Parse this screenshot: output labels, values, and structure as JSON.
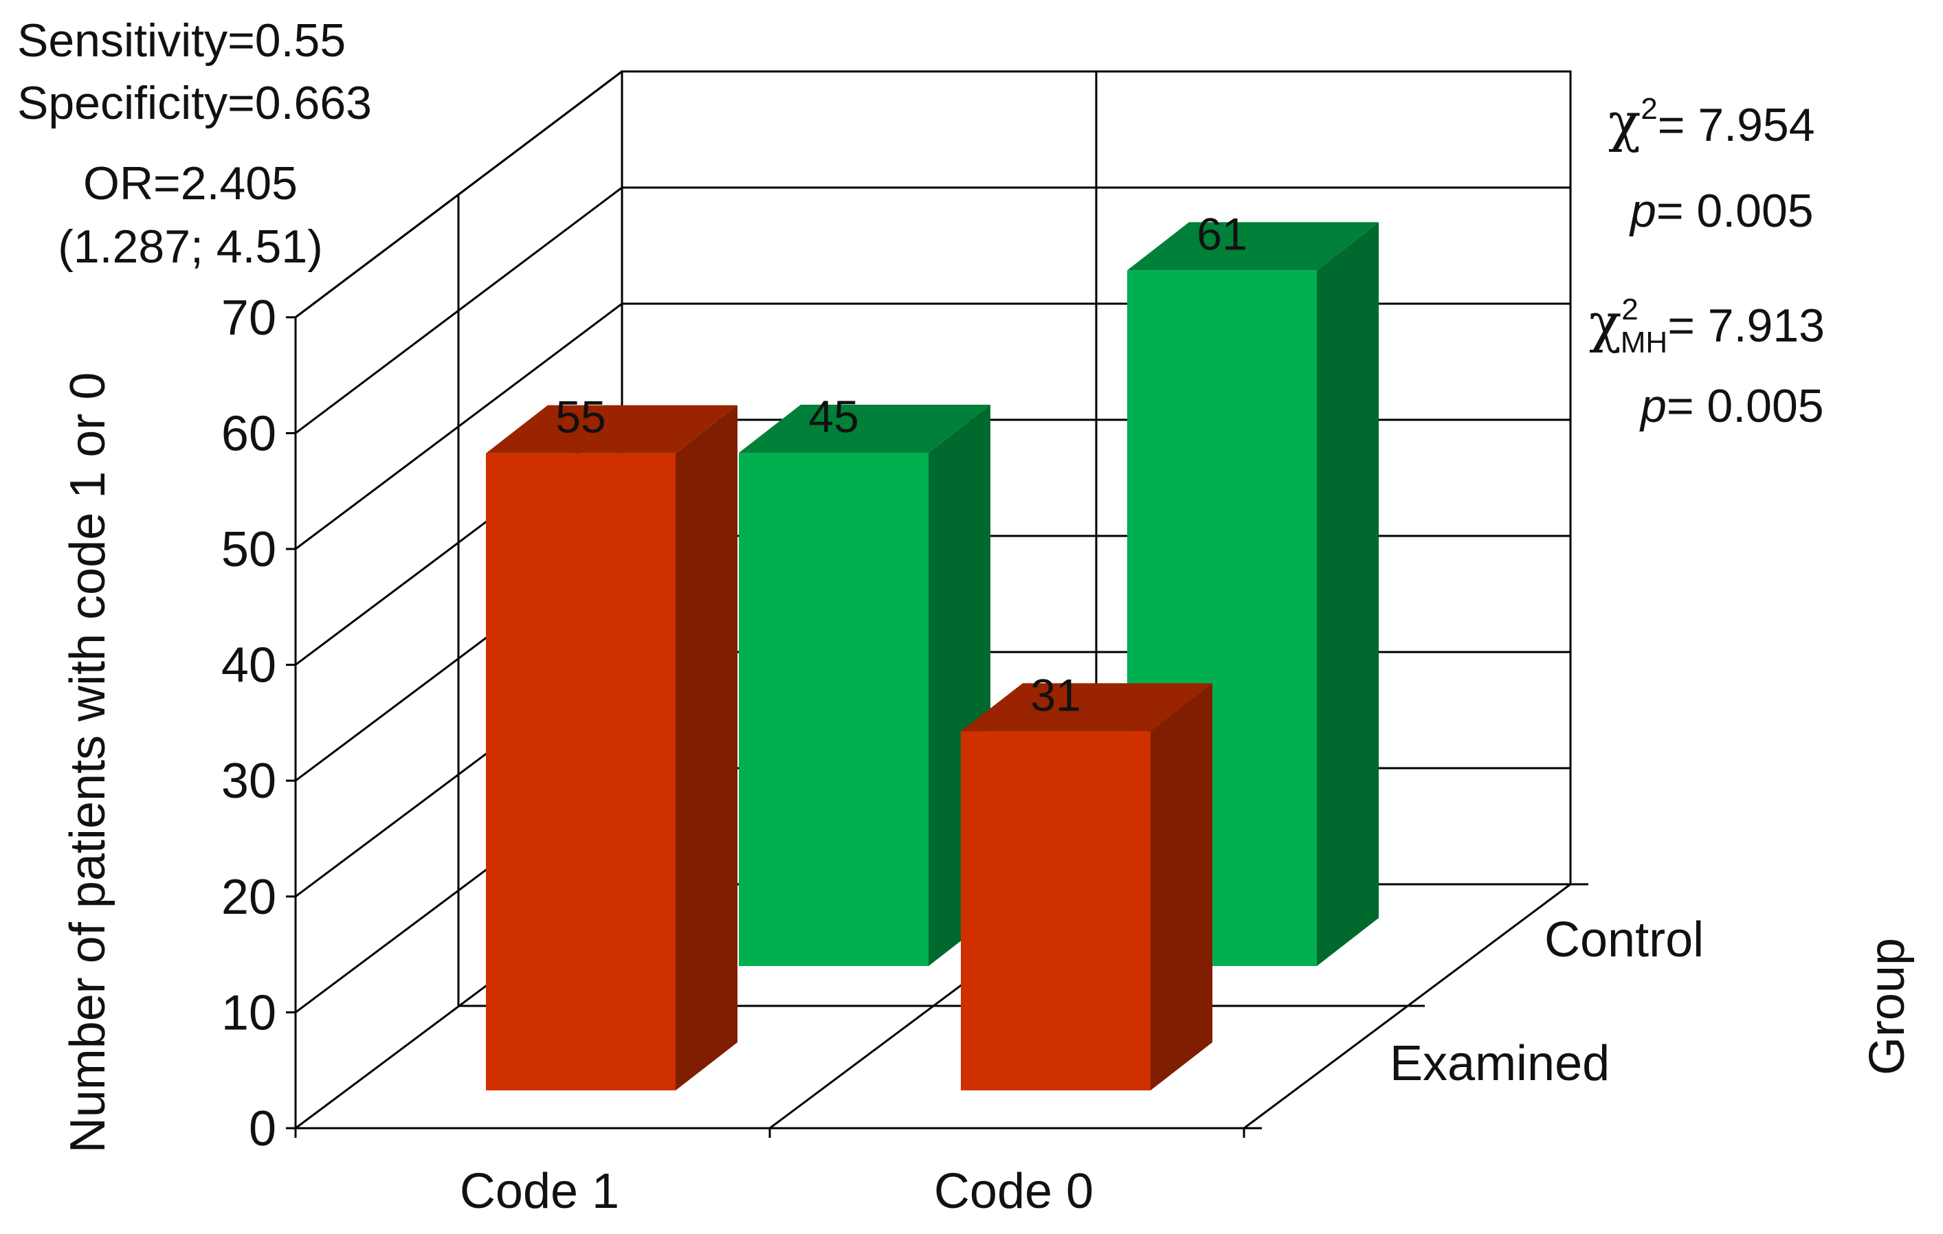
{
  "chart_data": {
    "type": "bar",
    "variant": "3d-clustered",
    "categories": [
      "Code 1",
      "Code 0"
    ],
    "series": [
      {
        "name": "Examined",
        "values": [
          55,
          31
        ],
        "color": "#d03000",
        "side_color": "#7f1e00",
        "top_color": "#9a2400"
      },
      {
        "name": "Control",
        "values": [
          45,
          61
        ],
        "color": "#00b050",
        "side_color": "#006a2e",
        "top_color": "#008038"
      }
    ],
    "ylabel": "Number of patients with code 1 or 0",
    "zlabel": "Group",
    "ylim": [
      0,
      70
    ],
    "yticks": [
      "0",
      "10",
      "20",
      "30",
      "40",
      "50",
      "60",
      "70"
    ],
    "grid": true,
    "legend": "none",
    "annotations_left": [
      "Sensitivity=0.55",
      "Specificity=0.663",
      "OR=2.405",
      "(1.287; 4.51)"
    ],
    "annotations_right": {
      "chi2_symbol": "χ",
      "chi2_sup": "2",
      "chi2_value": "= 7.954",
      "p1_symbol": "p",
      "p1_value": "= 0.005",
      "chi2mh_symbol": "χ",
      "chi2mh_sup": "2",
      "chi2mh_sub": "MH",
      "chi2mh_value": "= 7.913",
      "p2_symbol": "p",
      "p2_value": "= 0.005"
    }
  }
}
